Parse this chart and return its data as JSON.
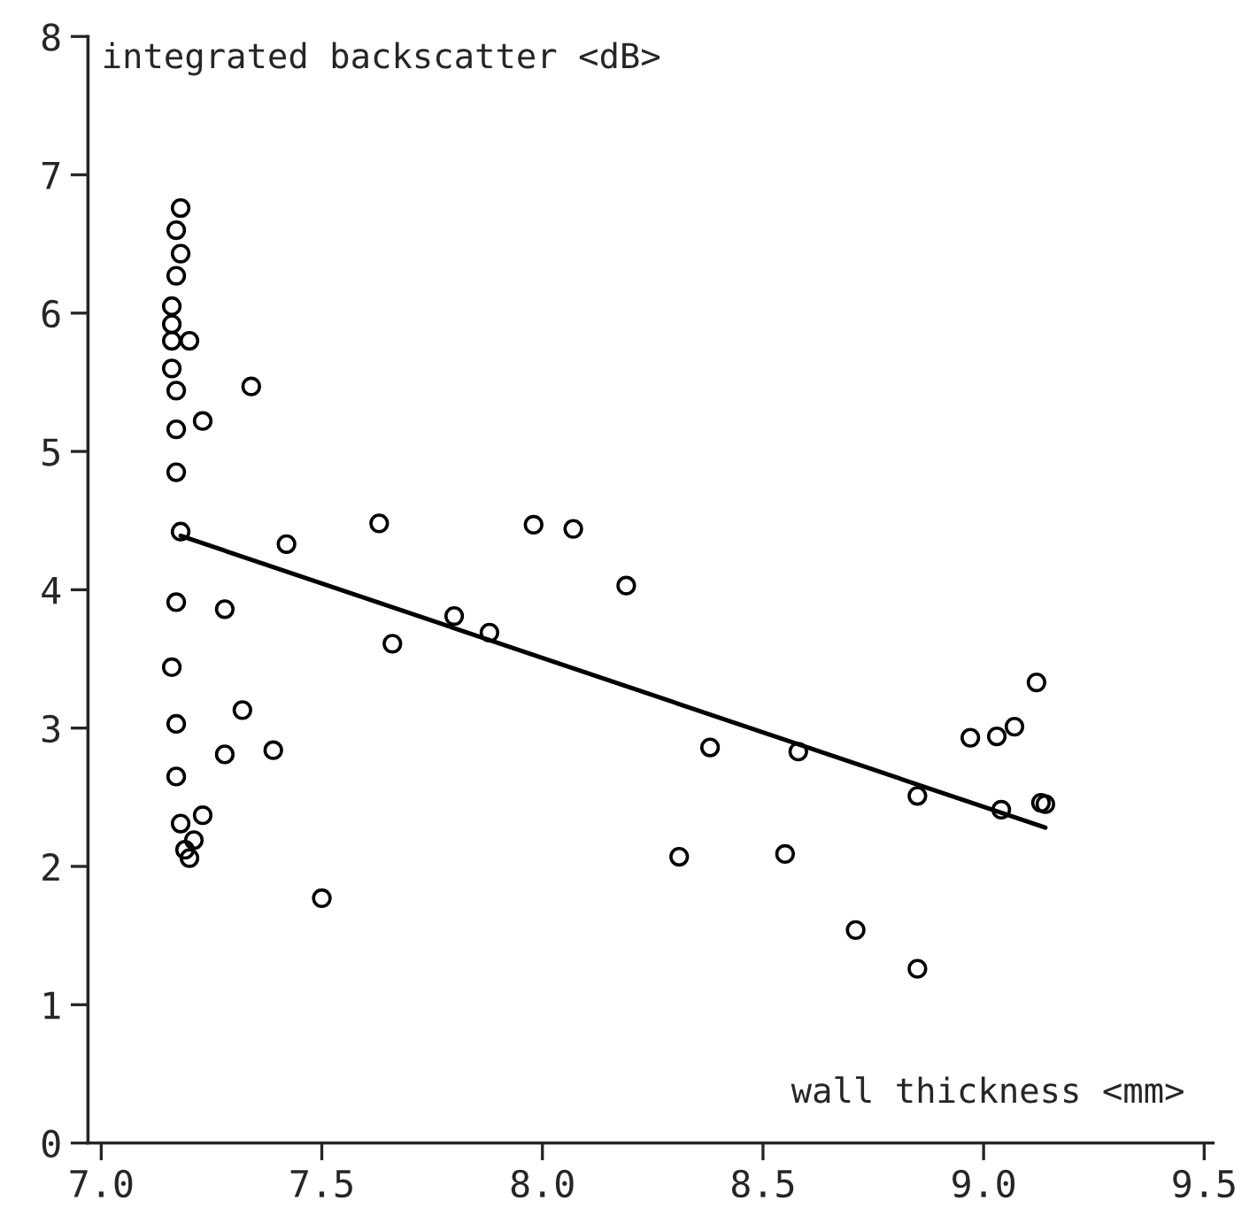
{
  "chart_data": {
    "type": "scatter",
    "xlabel": "wall thickness <mm>",
    "ylabel": "integrated backscatter <dB>",
    "xlim": [
      6.97,
      9.52
    ],
    "ylim": [
      0,
      8
    ],
    "xticks": [
      {
        "value": 7.0,
        "label": "7.0"
      },
      {
        "value": 7.5,
        "label": "7.5"
      },
      {
        "value": 8.0,
        "label": "8.0"
      },
      {
        "value": 8.5,
        "label": "8.5"
      },
      {
        "value": 9.0,
        "label": "9.0"
      },
      {
        "value": 9.5,
        "label": "9.5"
      }
    ],
    "yticks": [
      0,
      1,
      2,
      3,
      4,
      5,
      6,
      7,
      8
    ],
    "grid": false,
    "marker": "circle",
    "series": [
      {
        "color": "#000000",
        "x": [
          7.18,
          7.17,
          7.18,
          7.17,
          7.16,
          7.16,
          7.16,
          7.2,
          7.16,
          7.17,
          7.17,
          7.17,
          7.18,
          7.17,
          7.16,
          7.17,
          7.17,
          7.18,
          7.19,
          7.2,
          7.21,
          7.23,
          7.34,
          7.23,
          7.42,
          7.28,
          7.32,
          7.28,
          7.39,
          7.5,
          7.63,
          7.66,
          7.8,
          7.88,
          7.98,
          8.07,
          8.19,
          8.38,
          8.58,
          8.31,
          8.55,
          8.71,
          8.85,
          8.85,
          8.97,
          9.03,
          9.07,
          9.12,
          9.04,
          9.13,
          9.14
        ],
        "values": [
          6.76,
          6.6,
          6.43,
          6.27,
          6.05,
          5.92,
          5.8,
          5.8,
          5.6,
          5.44,
          5.16,
          4.85,
          4.42,
          3.91,
          3.44,
          3.03,
          2.65,
          2.31,
          2.12,
          2.06,
          2.19,
          2.37,
          5.47,
          5.22,
          4.33,
          3.86,
          3.13,
          2.81,
          2.84,
          1.77,
          4.48,
          3.61,
          3.81,
          3.69,
          4.47,
          4.44,
          4.03,
          2.86,
          2.83,
          2.07,
          2.09,
          1.54,
          1.26,
          2.51,
          2.93,
          2.94,
          3.01,
          3.33,
          2.41,
          2.46,
          2.45
        ]
      },
      {
        "type": "line",
        "color": "#000000",
        "marker": "none",
        "line_style": "solid",
        "x": [
          7.18,
          9.14
        ],
        "values": [
          4.39,
          2.28
        ]
      }
    ]
  }
}
